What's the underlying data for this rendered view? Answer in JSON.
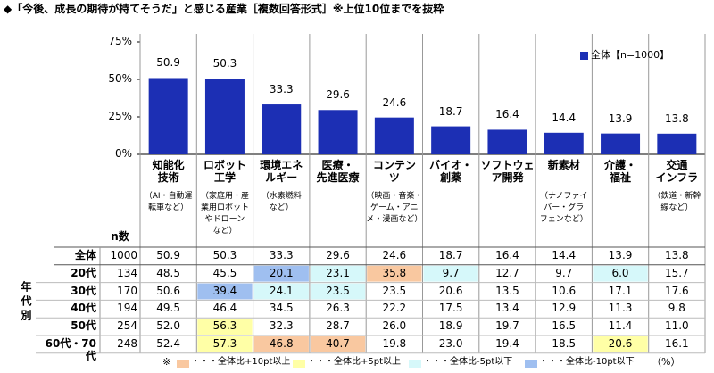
{
  "chart_data": {
    "type": "bar",
    "title": "◆「今後、成長の期待が持てそうだ」と感じる産業［複数回答形式］※上位10位までを抜粋",
    "categories": [
      "知能化\n技術",
      "ロボット\n工学",
      "環境エネ\nルギー",
      "医療・\n先進医療",
      "コンテン\nツ",
      "バイオ・\n創薬",
      "ソフトウェ\nア開発",
      "新素材",
      "介護・\n福祉",
      "交通\nインフラ"
    ],
    "category_notes": [
      "（AI・自動運\n転車など）",
      "（家庭用・産\n業用ロボット\nやドローン\nなど）",
      "（水素燃料\nなど）",
      null,
      "（映画・音楽・\nゲーム・アニ\nメ・漫画など）",
      null,
      null,
      "（ナノファイ\nバー・グラ\nフェンなど）",
      null,
      "（鉄道・新幹\n線など）"
    ],
    "values": [
      50.9,
      50.3,
      33.3,
      29.6,
      24.6,
      18.7,
      16.4,
      14.4,
      13.9,
      13.8
    ],
    "color": "#1c2fb4",
    "legend_label": "全体【n=1000】",
    "ylim": [
      0,
      75
    ],
    "yticks": [
      {
        "value": 0,
        "label": "0%"
      },
      {
        "value": 25,
        "label": "25%"
      },
      {
        "value": 50,
        "label": "50%"
      },
      {
        "value": 75,
        "label": "75%"
      }
    ],
    "grid": false
  },
  "table": {
    "n_header": "n数",
    "group_label": "年代別",
    "rows": [
      {
        "label": "全体",
        "n": "1000",
        "cells": [
          "50.9",
          "50.3",
          "33.3",
          "29.6",
          "24.6",
          "18.7",
          "16.4",
          "14.4",
          "13.9",
          "13.8"
        ],
        "highlight": [
          null,
          null,
          null,
          null,
          null,
          null,
          null,
          null,
          null,
          null
        ]
      },
      {
        "label": "20代",
        "n": "134",
        "cells": [
          "48.5",
          "45.5",
          "20.1",
          "23.1",
          "35.8",
          "9.7",
          "12.7",
          "9.7",
          "6.0",
          "15.7"
        ],
        "highlight": [
          null,
          null,
          3,
          2,
          0,
          2,
          null,
          null,
          2,
          null
        ]
      },
      {
        "label": "30代",
        "n": "170",
        "cells": [
          "50.6",
          "39.4",
          "24.1",
          "23.5",
          "23.5",
          "20.6",
          "13.5",
          "10.6",
          "17.1",
          "17.6"
        ],
        "highlight": [
          null,
          3,
          2,
          2,
          null,
          null,
          null,
          null,
          null,
          null
        ]
      },
      {
        "label": "40代",
        "n": "194",
        "cells": [
          "49.5",
          "46.4",
          "34.5",
          "26.3",
          "22.2",
          "17.5",
          "13.4",
          "12.9",
          "11.3",
          "9.8"
        ],
        "highlight": [
          null,
          null,
          null,
          null,
          null,
          null,
          null,
          null,
          null,
          null
        ]
      },
      {
        "label": "50代",
        "n": "254",
        "cells": [
          "52.0",
          "56.3",
          "32.3",
          "28.7",
          "26.0",
          "18.9",
          "19.7",
          "16.5",
          "11.4",
          "11.0"
        ],
        "highlight": [
          null,
          1,
          null,
          null,
          null,
          null,
          null,
          null,
          null,
          null
        ]
      },
      {
        "label": "60代・70代",
        "n": "248",
        "cells": [
          "52.4",
          "57.3",
          "46.8",
          "40.7",
          "19.8",
          "23.0",
          "19.4",
          "18.5",
          "20.6",
          "16.1"
        ],
        "highlight": [
          null,
          1,
          0,
          0,
          null,
          null,
          null,
          null,
          1,
          null
        ]
      }
    ]
  },
  "legend": {
    "mark": "※",
    "unit": "（%）",
    "items": [
      {
        "label": "・・・全体比+10pt以上",
        "color": "#f9c8a0"
      },
      {
        "label": "・・・全体比+5pt以上",
        "color": "#ffffa6"
      },
      {
        "label": "・・・全体比-5pt以下",
        "color": "#d6f8fa"
      },
      {
        "label": "・・・全体比-10pt以下",
        "color": "#9fbff0"
      }
    ]
  }
}
